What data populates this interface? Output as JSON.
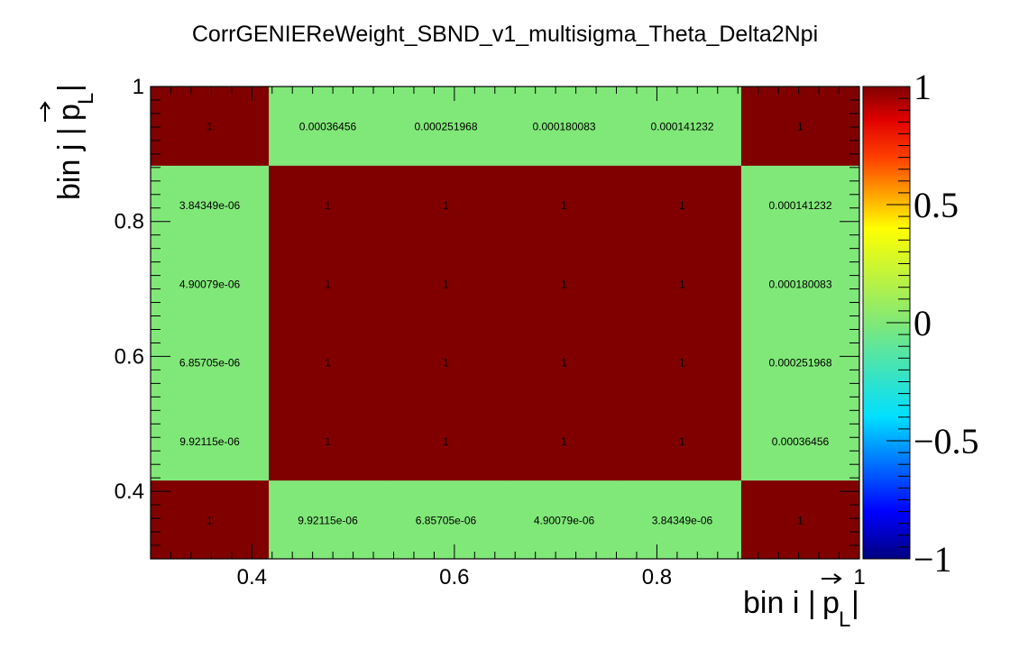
{
  "chart_data": {
    "type": "heatmap",
    "title": "CorrGENIEReWeight_SBND_v1_multisigma_Theta_Delta2Npi",
    "xlabel": "bin i |p_L|",
    "ylabel": "bin j |p_L|",
    "xlim": [
      0.3,
      1.0
    ],
    "ylim": [
      0.3,
      1.0
    ],
    "x_edges": [
      0.3,
      0.4167,
      0.5333,
      0.65,
      0.7667,
      0.8833,
      1.0
    ],
    "y_edges": [
      0.3,
      0.4167,
      0.5333,
      0.65,
      0.7667,
      0.8833,
      1.0
    ],
    "x_ticks": [
      "0.4",
      "0.6",
      "0.8",
      "1"
    ],
    "y_ticks": [
      "0.4",
      "0.6",
      "0.8",
      "1"
    ],
    "z_range": [
      -1,
      1
    ],
    "z_ticks": [
      "1",
      "0.5",
      "0",
      "−0.5",
      "−1"
    ],
    "colormap": [
      "#00007f",
      "#0000ff",
      "#00dfff",
      "#80e878",
      "#ffff00",
      "#ff7f00",
      "#ff0000",
      "#800000"
    ],
    "cells": [
      {
        "i": 0,
        "j": 0,
        "value": 1,
        "label": "1"
      },
      {
        "i": 1,
        "j": 0,
        "value": 9.92115e-06,
        "label": "9.92115e-06"
      },
      {
        "i": 2,
        "j": 0,
        "value": 6.85705e-06,
        "label": "6.85705e-06"
      },
      {
        "i": 3,
        "j": 0,
        "value": 4.90079e-06,
        "label": "4.90079e-06"
      },
      {
        "i": 4,
        "j": 0,
        "value": 3.84349e-06,
        "label": "3.84349e-06"
      },
      {
        "i": 5,
        "j": 0,
        "value": 1,
        "label": "1"
      },
      {
        "i": 0,
        "j": 1,
        "value": 9.92115e-06,
        "label": "9.92115e-06"
      },
      {
        "i": 1,
        "j": 1,
        "value": 1,
        "label": "1"
      },
      {
        "i": 2,
        "j": 1,
        "value": 1,
        "label": "1"
      },
      {
        "i": 3,
        "j": 1,
        "value": 1,
        "label": "1"
      },
      {
        "i": 4,
        "j": 1,
        "value": 1,
        "label": "1"
      },
      {
        "i": 5,
        "j": 1,
        "value": 0.00036456,
        "label": "0.00036456"
      },
      {
        "i": 0,
        "j": 2,
        "value": 6.85705e-06,
        "label": "6.85705e-06"
      },
      {
        "i": 1,
        "j": 2,
        "value": 1,
        "label": "1"
      },
      {
        "i": 2,
        "j": 2,
        "value": 1,
        "label": "1"
      },
      {
        "i": 3,
        "j": 2,
        "value": 1,
        "label": "1"
      },
      {
        "i": 4,
        "j": 2,
        "value": 1,
        "label": "1"
      },
      {
        "i": 5,
        "j": 2,
        "value": 0.000251968,
        "label": "0.000251968"
      },
      {
        "i": 0,
        "j": 3,
        "value": 4.90079e-06,
        "label": "4.90079e-06"
      },
      {
        "i": 1,
        "j": 3,
        "value": 1,
        "label": "1"
      },
      {
        "i": 2,
        "j": 3,
        "value": 1,
        "label": "1"
      },
      {
        "i": 3,
        "j": 3,
        "value": 1,
        "label": "1"
      },
      {
        "i": 4,
        "j": 3,
        "value": 1,
        "label": "1"
      },
      {
        "i": 5,
        "j": 3,
        "value": 0.000180083,
        "label": "0.000180083"
      },
      {
        "i": 0,
        "j": 4,
        "value": 3.84349e-06,
        "label": "3.84349e-06"
      },
      {
        "i": 1,
        "j": 4,
        "value": 1,
        "label": "1"
      },
      {
        "i": 2,
        "j": 4,
        "value": 1,
        "label": "1"
      },
      {
        "i": 3,
        "j": 4,
        "value": 1,
        "label": "1"
      },
      {
        "i": 4,
        "j": 4,
        "value": 1,
        "label": "1"
      },
      {
        "i": 5,
        "j": 4,
        "value": 0.000141232,
        "label": "0.000141232"
      },
      {
        "i": 0,
        "j": 5,
        "value": 1,
        "label": "1"
      },
      {
        "i": 1,
        "j": 5,
        "value": 0.00036456,
        "label": "0.00036456"
      },
      {
        "i": 2,
        "j": 5,
        "value": 0.000251968,
        "label": "0.000251968"
      },
      {
        "i": 3,
        "j": 5,
        "value": 0.000180083,
        "label": "0.000180083"
      },
      {
        "i": 4,
        "j": 5,
        "value": 0.000141232,
        "label": "0.000141232"
      },
      {
        "i": 5,
        "j": 5,
        "value": 1,
        "label": "1"
      }
    ]
  }
}
